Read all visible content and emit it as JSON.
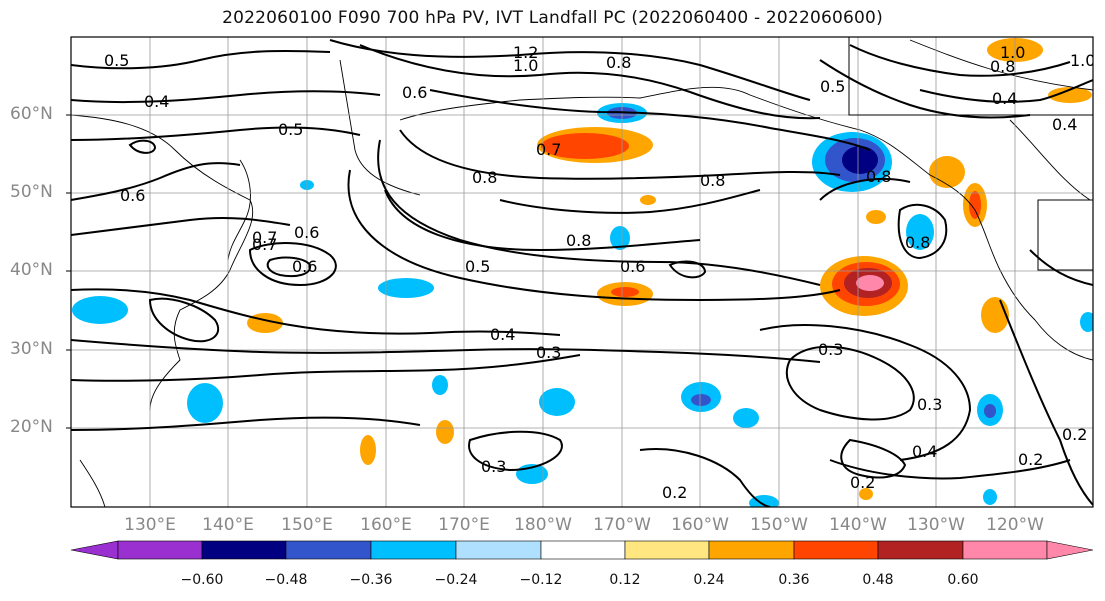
{
  "title": "2022060100 F090 700 hPa PV, IVT Landfall PC (2022060400 - 2022060600)",
  "lat_labels": [
    "60°N",
    "50°N",
    "40°N",
    "30°N",
    "20°N"
  ],
  "lon_labels": [
    "130°E",
    "140°E",
    "150°E",
    "160°E",
    "170°E",
    "180°W",
    "170°W",
    "160°W",
    "150°W",
    "140°W",
    "130°W",
    "120°W"
  ],
  "colorbar": {
    "ticks": [
      "−0.60",
      "−0.48",
      "−0.36",
      "−0.24",
      "−0.12",
      "0.12",
      "0.24",
      "0.36",
      "0.48",
      "0.60"
    ],
    "colors": [
      "#9b30d0",
      "#000080",
      "#3355cc",
      "#00bfff",
      "#b0e0ff",
      "#ffffff",
      "#ffe680",
      "#ffa500",
      "#ff4500",
      "#b22222",
      "#ff88aa"
    ]
  },
  "contour_labels": [
    "0.5",
    "1.2",
    "1.0",
    "0.8",
    "1.0",
    "0.8",
    "1.0",
    "0.4",
    "0.6",
    "0.5",
    "0.4",
    "0.7",
    "0.5",
    "0.8",
    "0.6",
    "0.8",
    "0.8",
    "0.6",
    "0.7",
    "0.6",
    "0.8",
    "0.5",
    "0.6",
    "0.4",
    "0.3",
    "0.3",
    "0.3",
    "0.8",
    "0.4",
    "0.3",
    "0.2",
    "0.2",
    "0.2",
    "0.2",
    "0.4",
    "0.7"
  ]
}
